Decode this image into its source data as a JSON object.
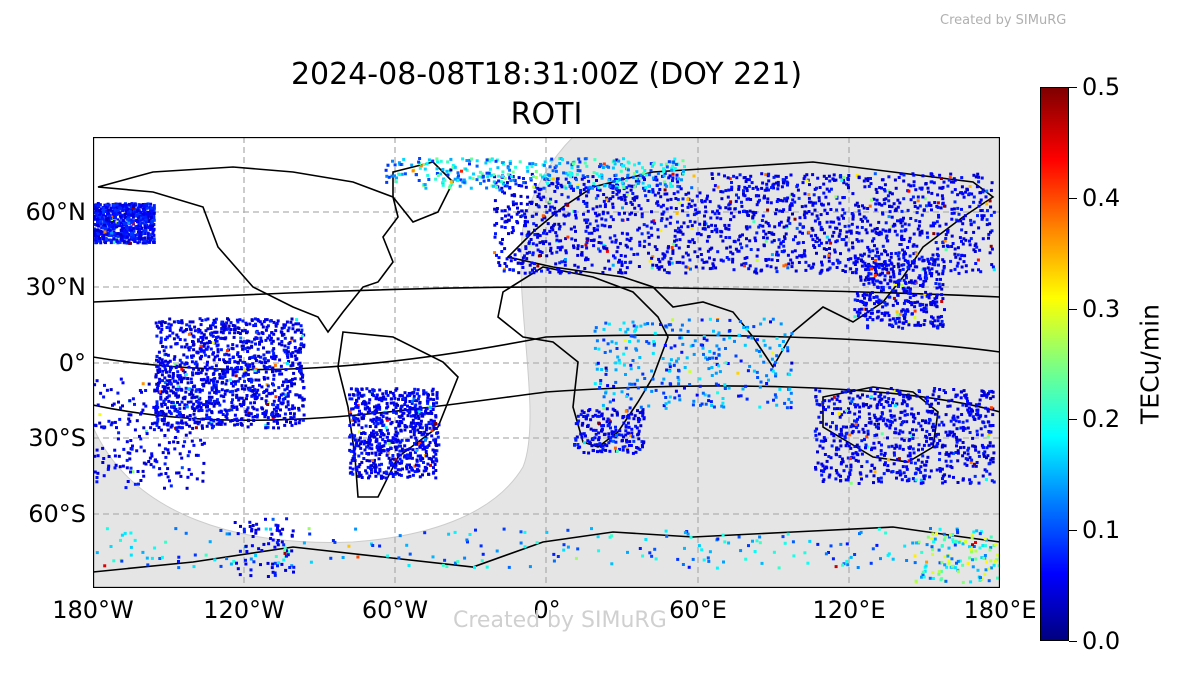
{
  "watermark_top": "Created by SIMuRG",
  "watermark_center": "Created by SIMuRG",
  "title_line1": "2024-08-08T18:31:00Z (DOY 221)",
  "title_line2": "ROTI",
  "x_ticks": [
    "180°W",
    "120°W",
    "60°W",
    "0°",
    "60°E",
    "120°E",
    "180°E"
  ],
  "y_ticks": [
    "60°N",
    "30°N",
    "0°",
    "30°S",
    "60°S"
  ],
  "colorbar": {
    "label": "TECu/min",
    "ticks": [
      "0.0",
      "0.1",
      "0.2",
      "0.3",
      "0.4",
      "0.5"
    ],
    "range": [
      0.0,
      0.5
    ],
    "colormap": "jet"
  },
  "colors": {
    "night_shade": "#e5e5e5",
    "grid": "#b0b0b0",
    "coast": "#000000",
    "rivers": "#7fa6d6"
  }
}
